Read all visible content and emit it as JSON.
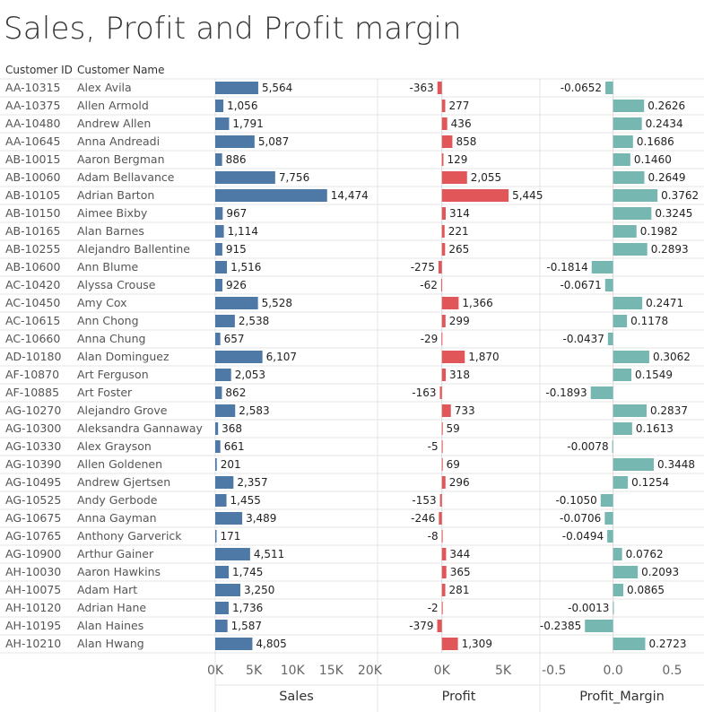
{
  "title": "Sales, Profit and Profit margin",
  "headers": {
    "customer_id": "Customer ID",
    "customer_name": "Customer Name"
  },
  "colors": {
    "sales": "#4e79a7",
    "profit": "#e15759",
    "profit_margin": "#76b7b2",
    "grid": "#e6e6e6",
    "text": "#333333",
    "axis_text": "#666666"
  },
  "chart_data": {
    "type": "bar",
    "orientation": "horizontal",
    "categories": [
      {
        "id": "AA-10315",
        "name": "Alex Avila"
      },
      {
        "id": "AA-10375",
        "name": "Allen Armold"
      },
      {
        "id": "AA-10480",
        "name": "Andrew Allen"
      },
      {
        "id": "AA-10645",
        "name": "Anna Andreadi"
      },
      {
        "id": "AB-10015",
        "name": "Aaron Bergman"
      },
      {
        "id": "AB-10060",
        "name": "Adam Bellavance"
      },
      {
        "id": "AB-10105",
        "name": "Adrian Barton"
      },
      {
        "id": "AB-10150",
        "name": "Aimee Bixby"
      },
      {
        "id": "AB-10165",
        "name": "Alan Barnes"
      },
      {
        "id": "AB-10255",
        "name": "Alejandro Ballentine"
      },
      {
        "id": "AB-10600",
        "name": "Ann Blume"
      },
      {
        "id": "AC-10420",
        "name": "Alyssa Crouse"
      },
      {
        "id": "AC-10450",
        "name": "Amy Cox"
      },
      {
        "id": "AC-10615",
        "name": "Ann Chong"
      },
      {
        "id": "AC-10660",
        "name": "Anna Chung"
      },
      {
        "id": "AD-10180",
        "name": "Alan Dominguez"
      },
      {
        "id": "AF-10870",
        "name": "Art Ferguson"
      },
      {
        "id": "AF-10885",
        "name": "Art Foster"
      },
      {
        "id": "AG-10270",
        "name": "Alejandro Grove"
      },
      {
        "id": "AG-10300",
        "name": "Aleksandra Gannaway"
      },
      {
        "id": "AG-10330",
        "name": "Alex Grayson"
      },
      {
        "id": "AG-10390",
        "name": "Allen Goldenen"
      },
      {
        "id": "AG-10495",
        "name": "Andrew Gjertsen"
      },
      {
        "id": "AG-10525",
        "name": "Andy Gerbode"
      },
      {
        "id": "AG-10675",
        "name": "Anna Gayman"
      },
      {
        "id": "AG-10765",
        "name": "Anthony Garverick"
      },
      {
        "id": "AG-10900",
        "name": "Arthur Gainer"
      },
      {
        "id": "AH-10030",
        "name": "Aaron Hawkins"
      },
      {
        "id": "AH-10075",
        "name": "Adam Hart"
      },
      {
        "id": "AH-10120",
        "name": "Adrian Hane"
      },
      {
        "id": "AH-10195",
        "name": "Alan Haines"
      },
      {
        "id": "AH-10210",
        "name": "Alan Hwang"
      }
    ],
    "panels": [
      {
        "key": "sales",
        "name": "Sales",
        "xlim": [
          0,
          21000
        ],
        "ticks": [
          0,
          5000,
          10000,
          15000,
          20000
        ],
        "tick_labels": [
          "0K",
          "5K",
          "10K",
          "15K",
          "20K"
        ],
        "values": [
          5564,
          1056,
          1791,
          5087,
          886,
          7756,
          14474,
          967,
          1114,
          915,
          1516,
          926,
          5528,
          2538,
          657,
          6107,
          2053,
          862,
          2583,
          368,
          661,
          201,
          2357,
          1455,
          3489,
          171,
          4511,
          1745,
          3250,
          1736,
          1587,
          4805
        ],
        "labels": [
          "5,564",
          "1,056",
          "1,791",
          "5,087",
          "886",
          "7,756",
          "14,474",
          "967",
          "1,114",
          "915",
          "1,516",
          "926",
          "5,528",
          "2,538",
          "657",
          "6,107",
          "2,053",
          "862",
          "2,583",
          "368",
          "661",
          "201",
          "2,357",
          "1,455",
          "3,489",
          "171",
          "4,511",
          "1,745",
          "3,250",
          "1,736",
          "1,587",
          "4,805"
        ]
      },
      {
        "key": "profit",
        "name": "Profit",
        "xlim": [
          -5250,
          8000
        ],
        "ticks": [
          0,
          5000
        ],
        "tick_labels": [
          "0K",
          "5K"
        ],
        "values": [
          -363,
          277,
          436,
          858,
          129,
          2055,
          5445,
          314,
          221,
          265,
          -275,
          -62,
          1366,
          299,
          -29,
          1870,
          318,
          -163,
          733,
          59,
          -5,
          69,
          296,
          -153,
          -246,
          -8,
          344,
          365,
          281,
          -2,
          -379,
          1309
        ],
        "labels": [
          "-363",
          "277",
          "436",
          "858",
          "129",
          "2,055",
          "5,445",
          "314",
          "221",
          "265",
          "-275",
          "-62",
          "1,366",
          "299",
          "-29",
          "1,870",
          "318",
          "-163",
          "733",
          "59",
          "-5",
          "69",
          "296",
          "-153",
          "-246",
          "-8",
          "344",
          "365",
          "281",
          "-2",
          "-379",
          "1,309"
        ]
      },
      {
        "key": "profit_margin",
        "name": "Profit_Margin",
        "xlim": [
          -0.62,
          0.77
        ],
        "ticks": [
          -0.5,
          0,
          0.5
        ],
        "tick_labels": [
          "-0.5",
          "0.0",
          "0.5"
        ],
        "values": [
          -0.0652,
          0.2626,
          0.2434,
          0.1686,
          0.146,
          0.2649,
          0.3762,
          0.3245,
          0.1982,
          0.2893,
          -0.1814,
          -0.0671,
          0.2471,
          0.1178,
          -0.0437,
          0.3062,
          0.1549,
          -0.1893,
          0.2837,
          0.1613,
          -0.0078,
          0.3448,
          0.1254,
          -0.105,
          -0.0706,
          -0.0494,
          0.0762,
          0.2093,
          0.0865,
          -0.0013,
          -0.2385,
          0.2723
        ],
        "labels": [
          "-0.0652",
          "0.2626",
          "0.2434",
          "0.1686",
          "0.1460",
          "0.2649",
          "0.3762",
          "0.3245",
          "0.1982",
          "0.2893",
          "-0.1814",
          "-0.0671",
          "0.2471",
          "0.1178",
          "-0.0437",
          "0.3062",
          "0.1549",
          "-0.1893",
          "0.2837",
          "0.1613",
          "-0.0078",
          "0.3448",
          "0.1254",
          "-0.1050",
          "-0.0706",
          "-0.0494",
          "0.0762",
          "0.2093",
          "0.0865",
          "-0.0013",
          "-0.2385",
          "0.2723"
        ]
      }
    ],
    "grid": true,
    "legend": "none"
  }
}
